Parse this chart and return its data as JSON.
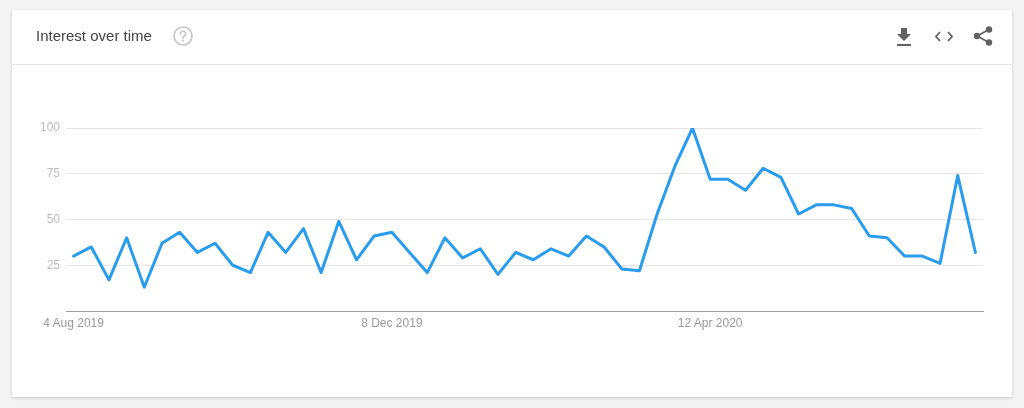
{
  "chart_data": {
    "type": "line",
    "title": "Interest over time",
    "x": [
      "2019-08-04",
      "2019-08-11",
      "2019-08-18",
      "2019-08-25",
      "2019-09-01",
      "2019-09-08",
      "2019-09-15",
      "2019-09-22",
      "2019-09-29",
      "2019-10-06",
      "2019-10-13",
      "2019-10-20",
      "2019-10-27",
      "2019-11-03",
      "2019-11-10",
      "2019-11-17",
      "2019-11-24",
      "2019-12-01",
      "2019-12-08",
      "2019-12-15",
      "2019-12-22",
      "2019-12-29",
      "2020-01-05",
      "2020-01-12",
      "2020-01-19",
      "2020-01-26",
      "2020-02-02",
      "2020-02-09",
      "2020-02-16",
      "2020-02-23",
      "2020-03-01",
      "2020-03-08",
      "2020-03-15",
      "2020-03-22",
      "2020-03-29",
      "2020-04-05",
      "2020-04-12",
      "2020-04-19",
      "2020-04-26",
      "2020-05-03",
      "2020-05-10",
      "2020-05-17",
      "2020-05-24",
      "2020-05-31",
      "2020-06-07",
      "2020-06-14",
      "2020-06-21",
      "2020-06-28",
      "2020-07-05",
      "2020-07-12",
      "2020-07-19",
      "2020-07-26"
    ],
    "values": [
      30,
      35,
      17,
      40,
      13,
      37,
      43,
      32,
      37,
      25,
      21,
      43,
      32,
      45,
      21,
      49,
      28,
      41,
      43,
      32,
      21,
      40,
      29,
      34,
      20,
      32,
      28,
      34,
      30,
      41,
      35,
      23,
      22,
      53,
      79,
      100,
      72,
      72,
      66,
      78,
      73,
      53,
      58,
      58,
      56,
      41,
      40,
      30,
      30,
      26,
      74,
      32
    ],
    "color": "#2a9cee",
    "xlim": [
      "2019-08-01",
      "2020-07-29"
    ],
    "xticks": [
      {
        "value": "2019-08-04",
        "label": "4 Aug 2019"
      },
      {
        "value": "2019-12-08",
        "label": "8 Dec 2019"
      },
      {
        "value": "2020-04-12",
        "label": "12 Apr 2020"
      }
    ],
    "ylim": [
      0,
      100
    ],
    "yticks": [
      25,
      50,
      75,
      100
    ],
    "grid": "y",
    "line_style": "solid"
  }
}
